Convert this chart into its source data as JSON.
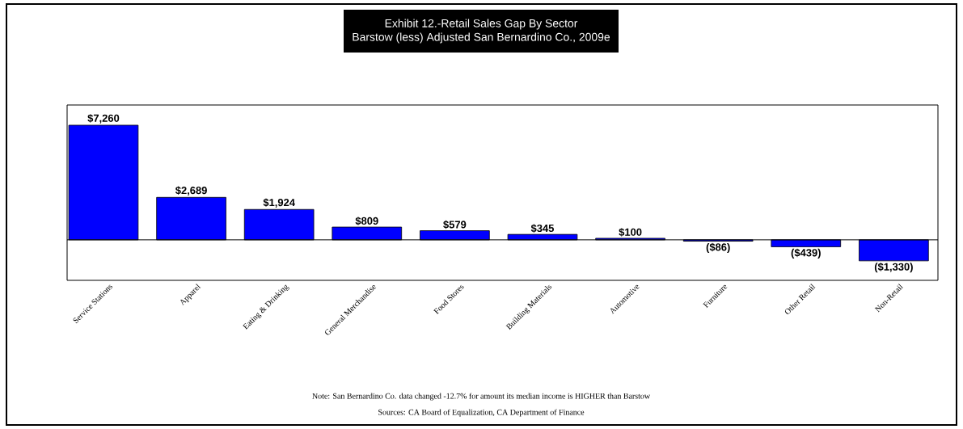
{
  "chart_data": {
    "type": "bar",
    "title": "Exhibit 12.-Retail Sales Gap By Sector",
    "subtitle": "Barstow (less) Adjusted San Bernardino Co., 2009e",
    "categories": [
      "Service Stations",
      "Apparel",
      "Eating & Drinking",
      "General Merchandise",
      "Food Stores",
      "Building Materials",
      "Automotive",
      "Furniture",
      "Other Retail",
      "Non-Retail"
    ],
    "values": [
      7260,
      2689,
      1924,
      809,
      579,
      345,
      100,
      -86,
      -439,
      -1330
    ],
    "value_labels": [
      "$7,260",
      "$2,689",
      "$1,924",
      "$809",
      "$579",
      "$345",
      "$100",
      "($86)",
      "($439)",
      "($1,330)"
    ],
    "color": "#0000ff",
    "annotations": [
      "Note: San Bernardino Co. data changed -12.7% for amount its median income is HIGHER than Barstow",
      "Sources:  CA Board of Equalization, CA Department of Finance"
    ]
  }
}
